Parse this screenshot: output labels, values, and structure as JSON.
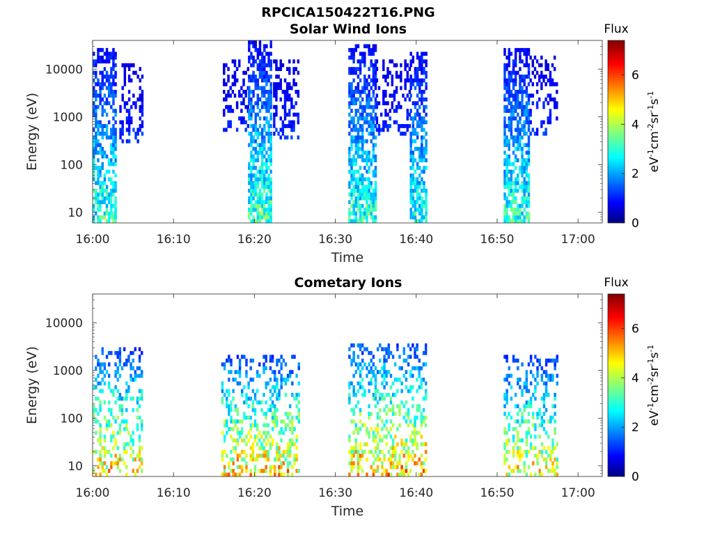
{
  "figure_title": "RPCICA150422T16.PNG",
  "chart_data": [
    {
      "type": "heatmap",
      "title": "Solar Wind Ions",
      "xlabel": "Time",
      "ylabel": "Energy (eV)",
      "x_tick_labels": [
        "16:00",
        "16:10",
        "16:20",
        "16:30",
        "16:40",
        "16:50",
        "17:00"
      ],
      "x_ticks_minutes": [
        0,
        10,
        20,
        30,
        40,
        50,
        60
      ],
      "xlim_minutes": [
        0,
        63
      ],
      "y_scale": "log",
      "ylim": [
        6,
        40000
      ],
      "y_tick_labels": [
        "10",
        "100",
        "1000",
        "10000"
      ],
      "y_ticks": [
        10,
        100,
        1000,
        10000
      ],
      "grid": false,
      "colorbar": {
        "title": "Flux",
        "label": "eV-1cm-2sr-1s-1",
        "range": [
          0,
          7.4
        ],
        "tick_labels": [
          "0",
          "2",
          "4",
          "6"
        ],
        "ticks": [
          0,
          2,
          4,
          6
        ],
        "colormap": "jet"
      },
      "bursts": [
        {
          "start": 0.0,
          "end": 2.8,
          "emin": 6,
          "emax": 30000,
          "dens": 0.55,
          "fmax": 4.0
        },
        {
          "start": 3.3,
          "end": 6.1,
          "emin": 300,
          "emax": 14000,
          "dens": 0.35,
          "fmax": 2.6
        },
        {
          "start": 16.1,
          "end": 19.2,
          "emin": 500,
          "emax": 16000,
          "dens": 0.35,
          "fmax": 2.4
        },
        {
          "start": 19.2,
          "end": 22.0,
          "emin": 6,
          "emax": 38000,
          "dens": 0.65,
          "fmax": 4.2
        },
        {
          "start": 22.3,
          "end": 25.3,
          "emin": 350,
          "emax": 16000,
          "dens": 0.35,
          "fmax": 2.5
        },
        {
          "start": 31.6,
          "end": 35.0,
          "emin": 6,
          "emax": 32000,
          "dens": 0.6,
          "fmax": 4.0
        },
        {
          "start": 35.0,
          "end": 39.2,
          "emin": 400,
          "emax": 16000,
          "dens": 0.35,
          "fmax": 2.6
        },
        {
          "start": 39.2,
          "end": 41.3,
          "emin": 6,
          "emax": 25000,
          "dens": 0.6,
          "fmax": 3.8
        },
        {
          "start": 50.8,
          "end": 54.0,
          "emin": 6,
          "emax": 30000,
          "dens": 0.6,
          "fmax": 4.0
        },
        {
          "start": 54.0,
          "end": 57.4,
          "emin": 400,
          "emax": 18000,
          "dens": 0.35,
          "fmax": 2.6
        }
      ]
    },
    {
      "type": "heatmap",
      "title": "Cometary Ions",
      "xlabel": "Time",
      "ylabel": "Energy (eV)",
      "x_tick_labels": [
        "16:00",
        "16:10",
        "16:20",
        "16:30",
        "16:40",
        "16:50",
        "17:00"
      ],
      "x_ticks_minutes": [
        0,
        10,
        20,
        30,
        40,
        50,
        60
      ],
      "xlim_minutes": [
        0,
        63
      ],
      "y_scale": "log",
      "ylim": [
        6,
        40000
      ],
      "y_tick_labels": [
        "10",
        "100",
        "1000",
        "10000"
      ],
      "y_ticks": [
        10,
        100,
        1000,
        10000
      ],
      "grid": false,
      "colorbar": {
        "title": "Flux",
        "label": "eV-1cm-2sr-1s-1",
        "range": [
          0,
          7.4
        ],
        "tick_labels": [
          "0",
          "2",
          "4",
          "6"
        ],
        "ticks": [
          0,
          2,
          4,
          6
        ],
        "colormap": "jet"
      },
      "bursts": [
        {
          "start": 0.0,
          "end": 6.1,
          "emin": 6,
          "emax": 3000,
          "dens": 0.3,
          "fmax": 6.2
        },
        {
          "start": 15.9,
          "end": 25.5,
          "emin": 6,
          "emax": 2000,
          "dens": 0.35,
          "fmax": 6.4
        },
        {
          "start": 31.6,
          "end": 41.3,
          "emin": 6,
          "emax": 4000,
          "dens": 0.35,
          "fmax": 6.5
        },
        {
          "start": 50.8,
          "end": 57.4,
          "emin": 6,
          "emax": 2000,
          "dens": 0.3,
          "fmax": 6.0
        }
      ]
    }
  ]
}
